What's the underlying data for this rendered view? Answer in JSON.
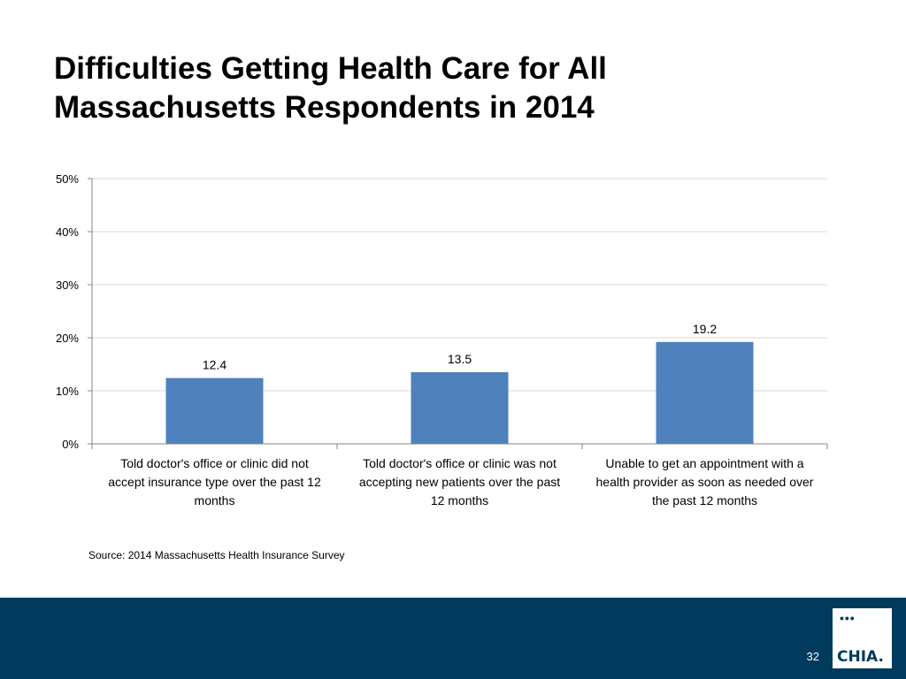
{
  "slide": {
    "title_line1": "Difficulties Getting Health Care for All",
    "title_line2": "Massachusetts Respondents in 2014",
    "source": "Source:  2014 Massachusetts Health Insurance Survey",
    "page_number": "32",
    "logo_text": "CHIA.",
    "logo_dots": "•••"
  },
  "colors": {
    "bar": "#4f81bd",
    "footer": "#003a5c",
    "grid": "#d9d9d9",
    "axis": "#868686"
  },
  "chart_data": {
    "type": "bar",
    "title": "",
    "xlabel": "",
    "ylabel": "",
    "ylim": [
      0,
      50
    ],
    "yticks": [
      0,
      10,
      20,
      30,
      40,
      50
    ],
    "ytick_labels": [
      "0%",
      "10%",
      "20%",
      "30%",
      "40%",
      "50%"
    ],
    "categories": [
      [
        "Told doctor's office or clinic did not",
        "accept insurance type over the past 12",
        "months"
      ],
      [
        "Told doctor's office or clinic was not",
        "accepting new patients over the past",
        "12 months"
      ],
      [
        "Unable to get an appointment with a",
        "health provider as soon as needed over",
        "the past 12 months"
      ]
    ],
    "values": [
      12.4,
      13.5,
      19.2
    ],
    "data_labels": [
      "12.4",
      "13.5",
      "19.2"
    ],
    "grid": true,
    "legend": "none"
  }
}
